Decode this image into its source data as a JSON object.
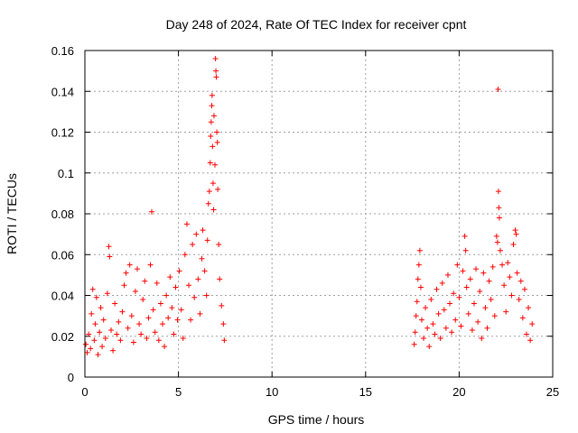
{
  "chart_data": {
    "type": "scatter",
    "title": "Day 248 of 2024, Rate Of TEC Index for receiver cpnt",
    "xlabel": "GPS time / hours",
    "ylabel": "ROTI / TECUs",
    "xlim": [
      0,
      25
    ],
    "ylim": [
      0,
      0.16
    ],
    "xticks": [
      0,
      5,
      10,
      15,
      20,
      25
    ],
    "xtick_labels": [
      "0",
      "5",
      "10",
      "15",
      "20",
      "25"
    ],
    "yticks": [
      0,
      0.02,
      0.04,
      0.06,
      0.08,
      0.1,
      0.12,
      0.14,
      0.16
    ],
    "ytick_labels": [
      "0",
      "0.02",
      "0.04",
      "0.06",
      "0.08",
      "0.1",
      "0.12",
      "0.14",
      "0.16"
    ],
    "grid": true,
    "marker": "+",
    "color": "#ff0000",
    "series": [
      {
        "name": "ROTI",
        "points": [
          [
            0.05,
            0.016
          ],
          [
            0.12,
            0.012
          ],
          [
            0.2,
            0.021
          ],
          [
            0.3,
            0.014
          ],
          [
            0.35,
            0.031
          ],
          [
            0.42,
            0.043
          ],
          [
            0.5,
            0.018
          ],
          [
            0.55,
            0.026
          ],
          [
            0.62,
            0.039
          ],
          [
            0.7,
            0.011
          ],
          [
            0.78,
            0.022
          ],
          [
            0.85,
            0.034
          ],
          [
            0.92,
            0.015
          ],
          [
            1.0,
            0.028
          ],
          [
            1.1,
            0.019
          ],
          [
            1.2,
            0.041
          ],
          [
            1.28,
            0.064
          ],
          [
            1.32,
            0.059
          ],
          [
            1.4,
            0.023
          ],
          [
            1.5,
            0.013
          ],
          [
            1.6,
            0.036
          ],
          [
            1.7,
            0.021
          ],
          [
            1.8,
            0.027
          ],
          [
            1.9,
            0.018
          ],
          [
            2.0,
            0.032
          ],
          [
            2.1,
            0.045
          ],
          [
            2.2,
            0.051
          ],
          [
            2.3,
            0.024
          ],
          [
            2.4,
            0.055
          ],
          [
            2.5,
            0.03
          ],
          [
            2.6,
            0.017
          ],
          [
            2.7,
            0.042
          ],
          [
            2.8,
            0.053
          ],
          [
            2.9,
            0.026
          ],
          [
            3.0,
            0.021
          ],
          [
            3.1,
            0.038
          ],
          [
            3.2,
            0.047
          ],
          [
            3.3,
            0.019
          ],
          [
            3.4,
            0.029
          ],
          [
            3.5,
            0.055
          ],
          [
            3.57,
            0.081
          ],
          [
            3.65,
            0.033
          ],
          [
            3.75,
            0.022
          ],
          [
            3.85,
            0.046
          ],
          [
            3.95,
            0.018
          ],
          [
            4.05,
            0.036
          ],
          [
            4.15,
            0.026
          ],
          [
            4.25,
            0.015
          ],
          [
            4.35,
            0.04
          ],
          [
            4.45,
            0.029
          ],
          [
            4.55,
            0.049
          ],
          [
            4.65,
            0.034
          ],
          [
            4.75,
            0.021
          ],
          [
            4.85,
            0.044
          ],
          [
            4.95,
            0.028
          ],
          [
            5.05,
            0.052
          ],
          [
            5.15,
            0.033
          ],
          [
            5.25,
            0.019
          ],
          [
            5.35,
            0.06
          ],
          [
            5.45,
            0.075
          ],
          [
            5.55,
            0.045
          ],
          [
            5.65,
            0.028
          ],
          [
            5.75,
            0.065
          ],
          [
            5.85,
            0.039
          ],
          [
            5.95,
            0.07
          ],
          [
            6.05,
            0.048
          ],
          [
            6.15,
            0.031
          ],
          [
            6.25,
            0.058
          ],
          [
            6.3,
            0.072
          ],
          [
            6.4,
            0.052
          ],
          [
            6.5,
            0.04
          ],
          [
            6.55,
            0.067
          ],
          [
            6.6,
            0.085
          ],
          [
            6.65,
            0.091
          ],
          [
            6.7,
            0.105
          ],
          [
            6.72,
            0.118
          ],
          [
            6.75,
            0.125
          ],
          [
            6.78,
            0.133
          ],
          [
            6.8,
            0.138
          ],
          [
            6.82,
            0.113
          ],
          [
            6.85,
            0.095
          ],
          [
            6.88,
            0.082
          ],
          [
            6.9,
            0.128
          ],
          [
            6.95,
            0.104
          ],
          [
            6.98,
            0.156
          ],
          [
            7.0,
            0.15
          ],
          [
            7.02,
            0.147
          ],
          [
            7.05,
            0.12
          ],
          [
            7.08,
            0.115
          ],
          [
            7.1,
            0.092
          ],
          [
            7.15,
            0.065
          ],
          [
            7.2,
            0.048
          ],
          [
            7.3,
            0.035
          ],
          [
            7.4,
            0.026
          ],
          [
            7.45,
            0.018
          ],
          [
            17.6,
            0.016
          ],
          [
            17.65,
            0.022
          ],
          [
            17.7,
            0.03
          ],
          [
            17.75,
            0.037
          ],
          [
            17.8,
            0.048
          ],
          [
            17.85,
            0.055
          ],
          [
            17.9,
            0.062
          ],
          [
            17.95,
            0.044
          ],
          [
            18.0,
            0.028
          ],
          [
            18.1,
            0.019
          ],
          [
            18.2,
            0.034
          ],
          [
            18.3,
            0.024
          ],
          [
            18.4,
            0.015
          ],
          [
            18.5,
            0.038
          ],
          [
            18.6,
            0.026
          ],
          [
            18.7,
            0.021
          ],
          [
            18.8,
            0.043
          ],
          [
            18.9,
            0.031
          ],
          [
            19.0,
            0.019
          ],
          [
            19.1,
            0.046
          ],
          [
            19.2,
            0.033
          ],
          [
            19.3,
            0.024
          ],
          [
            19.4,
            0.05
          ],
          [
            19.5,
            0.036
          ],
          [
            19.6,
            0.022
          ],
          [
            19.7,
            0.041
          ],
          [
            19.8,
            0.028
          ],
          [
            19.9,
            0.055
          ],
          [
            20.0,
            0.039
          ],
          [
            20.1,
            0.025
          ],
          [
            20.2,
            0.052
          ],
          [
            20.3,
            0.069
          ],
          [
            20.35,
            0.062
          ],
          [
            20.4,
            0.044
          ],
          [
            20.5,
            0.031
          ],
          [
            20.6,
            0.048
          ],
          [
            20.7,
            0.023
          ],
          [
            20.8,
            0.036
          ],
          [
            20.9,
            0.053
          ],
          [
            21.0,
            0.027
          ],
          [
            21.1,
            0.042
          ],
          [
            21.2,
            0.019
          ],
          [
            21.3,
            0.051
          ],
          [
            21.4,
            0.034
          ],
          [
            21.5,
            0.024
          ],
          [
            21.6,
            0.047
          ],
          [
            21.7,
            0.038
          ],
          [
            21.8,
            0.054
          ],
          [
            21.9,
            0.03
          ],
          [
            22.0,
            0.069
          ],
          [
            22.05,
            0.066
          ],
          [
            22.08,
            0.141
          ],
          [
            22.1,
            0.091
          ],
          [
            22.12,
            0.083
          ],
          [
            22.15,
            0.078
          ],
          [
            22.2,
            0.062
          ],
          [
            22.3,
            0.055
          ],
          [
            22.4,
            0.045
          ],
          [
            22.5,
            0.032
          ],
          [
            22.6,
            0.056
          ],
          [
            22.7,
            0.049
          ],
          [
            22.8,
            0.04
          ],
          [
            22.9,
            0.065
          ],
          [
            23.0,
            0.072
          ],
          [
            23.05,
            0.07
          ],
          [
            23.1,
            0.051
          ],
          [
            23.2,
            0.038
          ],
          [
            23.3,
            0.047
          ],
          [
            23.4,
            0.029
          ],
          [
            23.5,
            0.043
          ],
          [
            23.6,
            0.021
          ],
          [
            23.7,
            0.034
          ],
          [
            23.8,
            0.018
          ],
          [
            23.9,
            0.026
          ]
        ]
      }
    ]
  }
}
